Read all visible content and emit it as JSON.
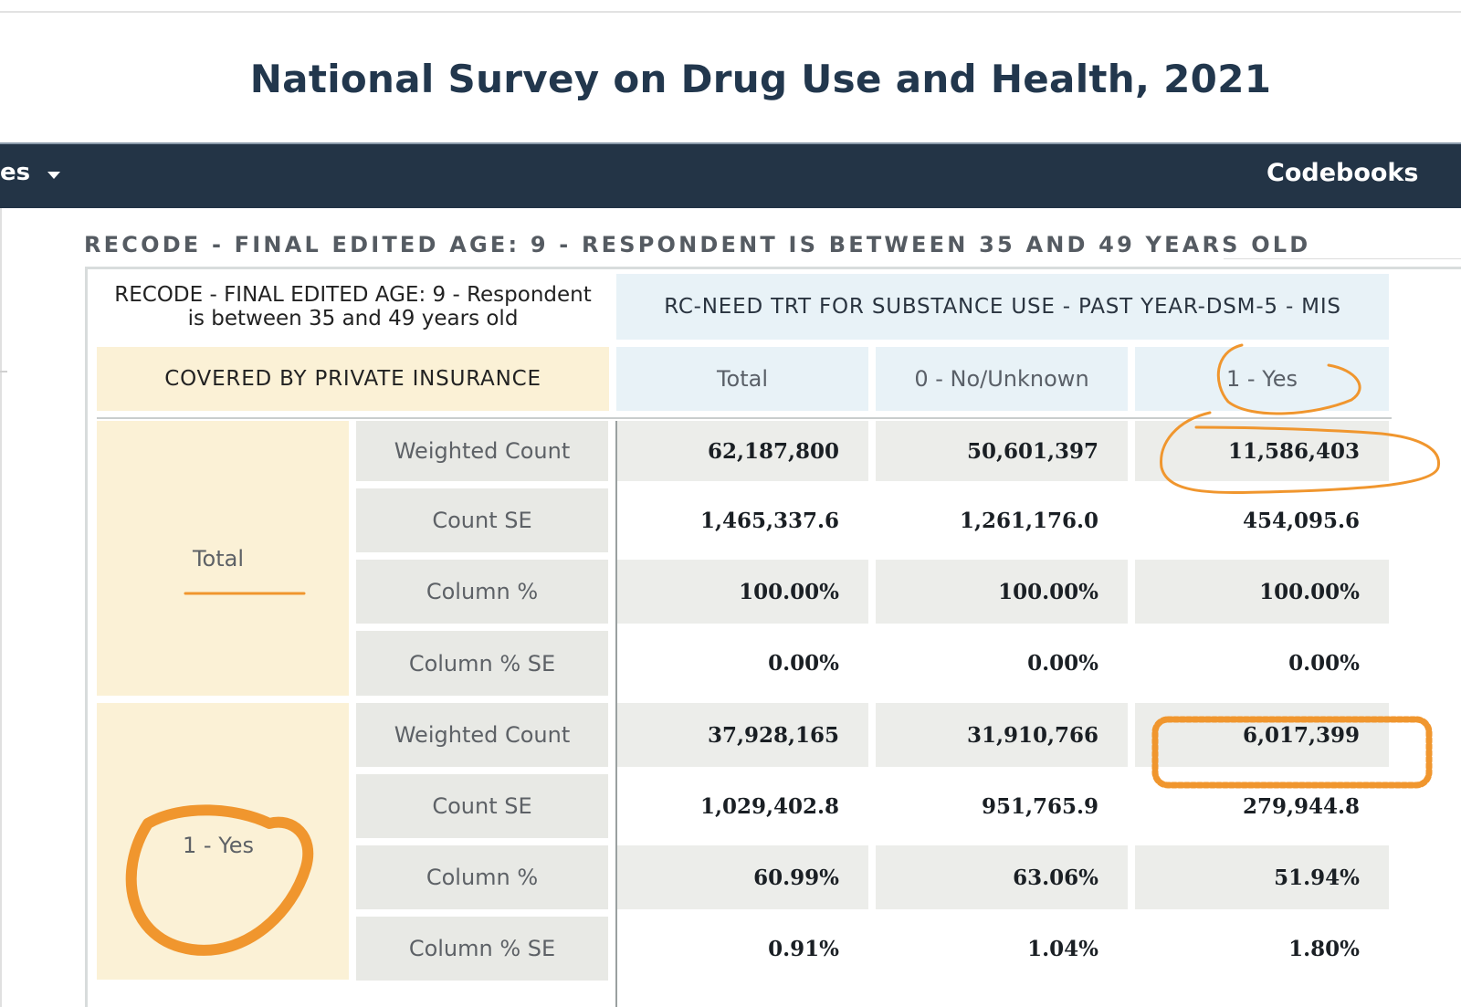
{
  "page": {
    "title": "National Survey on Drug Use and Health, 2021"
  },
  "nav": {
    "left_fragment": "es",
    "right_link": "Codebooks"
  },
  "section": {
    "heading": "RECODE - FINAL EDITED AGE: 9 - RESPONDENT IS BETWEEN 35 AND 49 YEARS OLD"
  },
  "table": {
    "filter_label": "RECODE - FINAL EDITED AGE: 9 - Respondent is between 35 and 49 years old",
    "column_variable": "RC-NEED TRT FOR SUBSTANCE USE - PAST YEAR-DSM-5 - MIS",
    "row_variable": "COVERED BY PRIVATE INSURANCE",
    "columns": [
      "Total",
      "0 - No/Unknown",
      "1 - Yes"
    ],
    "groups": [
      {
        "label": "Total",
        "rows": [
          {
            "stat": "Weighted Count",
            "values": [
              "62,187,800",
              "50,601,397",
              "11,586,403"
            ]
          },
          {
            "stat": "Count SE",
            "values": [
              "1,465,337.6",
              "1,261,176.0",
              "454,095.6"
            ]
          },
          {
            "stat": "Column %",
            "values": [
              "100.00%",
              "100.00%",
              "100.00%"
            ]
          },
          {
            "stat": "Column % SE",
            "values": [
              "0.00%",
              "0.00%",
              "0.00%"
            ]
          }
        ]
      },
      {
        "label": "1 - Yes",
        "rows": [
          {
            "stat": "Weighted Count",
            "values": [
              "37,928,165",
              "31,910,766",
              "6,017,399"
            ]
          },
          {
            "stat": "Count SE",
            "values": [
              "1,029,402.8",
              "951,765.9",
              "279,944.8"
            ]
          },
          {
            "stat": "Column %",
            "values": [
              "60.99%",
              "63.06%",
              "51.94%"
            ]
          },
          {
            "stat": "Column % SE",
            "values": [
              "0.91%",
              "1.04%",
              "1.80%"
            ]
          }
        ]
      }
    ]
  },
  "colors": {
    "navbar": "#233446",
    "title": "#22374d",
    "annotation": "#f0962e",
    "cream": "#fbf1d6",
    "light_blue": "#e8f2f7",
    "gray": "#e8e9e5"
  }
}
